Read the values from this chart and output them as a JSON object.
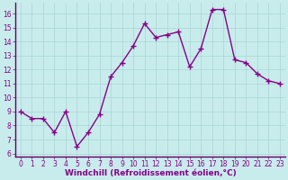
{
  "x": [
    0,
    1,
    2,
    3,
    4,
    5,
    6,
    7,
    8,
    9,
    10,
    11,
    12,
    13,
    14,
    15,
    16,
    17,
    18,
    19,
    20,
    21,
    22,
    23
  ],
  "y": [
    9.0,
    8.5,
    8.5,
    7.5,
    9.0,
    6.5,
    7.5,
    8.8,
    11.5,
    12.5,
    13.7,
    15.3,
    14.3,
    14.5,
    14.7,
    12.2,
    13.5,
    16.3,
    16.3,
    12.7,
    12.5,
    11.7,
    11.2,
    11.0
  ],
  "line_color": "#880088",
  "marker": "+",
  "linewidth": 1.0,
  "markersize": 4,
  "markeredgewidth": 1.0,
  "background_color": "#c8ecec",
  "grid_color": "#aad4d4",
  "xlabel": "Windchill (Refroidissement éolien,°C)",
  "xlabel_fontsize": 6.5,
  "xlabel_color": "#880088",
  "yticks": [
    6,
    7,
    8,
    9,
    10,
    11,
    12,
    13,
    14,
    15,
    16
  ],
  "xtick_labels": [
    "0",
    "1",
    "2",
    "3",
    "4",
    "5",
    "6",
    "7",
    "8",
    "9",
    "10",
    "11",
    "12",
    "13",
    "14",
    "15",
    "16",
    "17",
    "18",
    "19",
    "20",
    "21",
    "22",
    "23"
  ],
  "ylim": [
    5.8,
    16.8
  ],
  "xlim": [
    -0.5,
    23.5
  ],
  "tick_fontsize": 5.5,
  "tick_color": "#880088",
  "spine_color": "#880088",
  "bottom_spine_color": "#660066"
}
